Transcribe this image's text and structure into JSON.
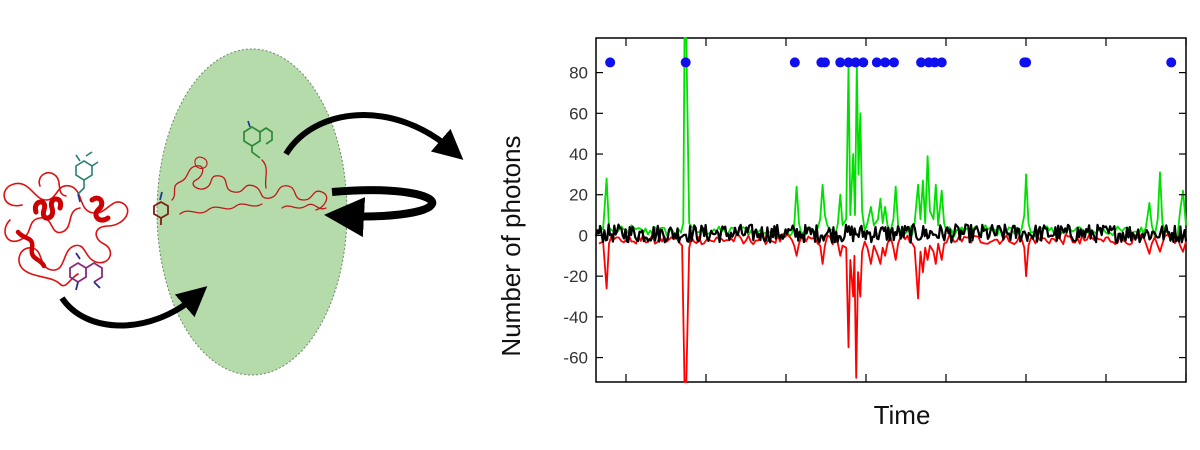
{
  "colors": {
    "focal_volume": "#b5dbaa",
    "donor": "#00e000",
    "acceptor": "#ff0000",
    "sum": "#000000",
    "burst_marker": "#1010ee",
    "protein": "#e01010",
    "arrow": "#000000"
  },
  "diagram": {
    "elements": [
      "folded-protein",
      "confocal-volume",
      "unfolded-protein",
      "donor-dye",
      "acceptor-dye",
      "diffusion-arrows"
    ]
  },
  "chart_data": {
    "type": "line",
    "xlabel": "Time",
    "ylabel": "Number of photons",
    "ylim": [
      -72,
      97
    ],
    "yticks": [
      -60,
      -40,
      -20,
      0,
      20,
      40,
      60,
      80
    ],
    "xlim": [
      0,
      1
    ],
    "grid": false,
    "burst_marker_y": 85,
    "burst_marker_x": [
      0.024,
      0.152,
      0.337,
      0.382,
      0.388,
      0.414,
      0.428,
      0.44,
      0.453,
      0.476,
      0.49,
      0.505,
      0.551,
      0.564,
      0.574,
      0.586,
      0.726,
      0.729,
      0.975
    ],
    "series": [
      {
        "id": "donor",
        "points": [
          [
            0.005,
            5
          ],
          [
            0.012,
            3
          ],
          [
            0.018,
            28
          ],
          [
            0.022,
            4
          ],
          [
            0.03,
            2
          ],
          [
            0.06,
            5
          ],
          [
            0.1,
            4
          ],
          [
            0.14,
            3
          ],
          [
            0.148,
            6
          ],
          [
            0.15,
            97
          ],
          [
            0.153,
            97
          ],
          [
            0.158,
            6
          ],
          [
            0.2,
            3
          ],
          [
            0.25,
            4
          ],
          [
            0.3,
            3
          ],
          [
            0.336,
            5
          ],
          [
            0.34,
            24
          ],
          [
            0.344,
            6
          ],
          [
            0.36,
            4
          ],
          [
            0.38,
            8
          ],
          [
            0.384,
            25
          ],
          [
            0.388,
            10
          ],
          [
            0.392,
            5
          ],
          [
            0.41,
            6
          ],
          [
            0.414,
            20
          ],
          [
            0.418,
            5
          ],
          [
            0.424,
            8
          ],
          [
            0.428,
            84
          ],
          [
            0.431,
            10
          ],
          [
            0.436,
            40
          ],
          [
            0.439,
            10
          ],
          [
            0.442,
            84
          ],
          [
            0.445,
            30
          ],
          [
            0.448,
            60
          ],
          [
            0.451,
            12
          ],
          [
            0.46,
            6
          ],
          [
            0.466,
            14
          ],
          [
            0.471,
            5
          ],
          [
            0.478,
            8
          ],
          [
            0.482,
            18
          ],
          [
            0.486,
            6
          ],
          [
            0.49,
            14
          ],
          [
            0.494,
            5
          ],
          [
            0.504,
            8
          ],
          [
            0.508,
            24
          ],
          [
            0.512,
            5
          ],
          [
            0.54,
            6
          ],
          [
            0.546,
            25
          ],
          [
            0.55,
            8
          ],
          [
            0.554,
            27
          ],
          [
            0.558,
            6
          ],
          [
            0.562,
            39
          ],
          [
            0.566,
            12
          ],
          [
            0.572,
            8
          ],
          [
            0.576,
            25
          ],
          [
            0.58,
            5
          ],
          [
            0.586,
            22
          ],
          [
            0.59,
            6
          ],
          [
            0.62,
            4
          ],
          [
            0.66,
            5
          ],
          [
            0.7,
            4
          ],
          [
            0.726,
            10
          ],
          [
            0.729,
            30
          ],
          [
            0.733,
            6
          ],
          [
            0.78,
            3
          ],
          [
            0.82,
            4
          ],
          [
            0.86,
            3
          ],
          [
            0.9,
            4
          ],
          [
            0.932,
            4
          ],
          [
            0.938,
            16
          ],
          [
            0.942,
            5
          ],
          [
            0.952,
            8
          ],
          [
            0.956,
            31
          ],
          [
            0.96,
            6
          ],
          [
            0.99,
            12
          ],
          [
            0.995,
            22
          ],
          [
            1.0,
            5
          ]
        ]
      },
      {
        "id": "acceptor",
        "points": [
          [
            0.005,
            -4
          ],
          [
            0.012,
            -3
          ],
          [
            0.018,
            -26
          ],
          [
            0.022,
            -4
          ],
          [
            0.03,
            -2
          ],
          [
            0.06,
            -3
          ],
          [
            0.1,
            -4
          ],
          [
            0.14,
            -3
          ],
          [
            0.146,
            -5
          ],
          [
            0.15,
            -72
          ],
          [
            0.153,
            -72
          ],
          [
            0.158,
            -6
          ],
          [
            0.2,
            -3
          ],
          [
            0.25,
            -4
          ],
          [
            0.3,
            -3
          ],
          [
            0.336,
            -5
          ],
          [
            0.34,
            -10
          ],
          [
            0.344,
            -4
          ],
          [
            0.38,
            -5
          ],
          [
            0.384,
            -14
          ],
          [
            0.388,
            -5
          ],
          [
            0.41,
            -4
          ],
          [
            0.414,
            -10
          ],
          [
            0.418,
            -5
          ],
          [
            0.424,
            -6
          ],
          [
            0.428,
            -55
          ],
          [
            0.431,
            -12
          ],
          [
            0.436,
            -30
          ],
          [
            0.438,
            -10
          ],
          [
            0.441,
            -70
          ],
          [
            0.444,
            -18
          ],
          [
            0.448,
            -30
          ],
          [
            0.451,
            -8
          ],
          [
            0.46,
            -6
          ],
          [
            0.466,
            -14
          ],
          [
            0.471,
            -5
          ],
          [
            0.478,
            -10
          ],
          [
            0.482,
            -14
          ],
          [
            0.486,
            -6
          ],
          [
            0.49,
            -10
          ],
          [
            0.494,
            -4
          ],
          [
            0.504,
            -6
          ],
          [
            0.508,
            -12
          ],
          [
            0.512,
            -4
          ],
          [
            0.54,
            -6
          ],
          [
            0.546,
            -31
          ],
          [
            0.55,
            -8
          ],
          [
            0.554,
            -18
          ],
          [
            0.558,
            -6
          ],
          [
            0.562,
            -12
          ],
          [
            0.566,
            -5
          ],
          [
            0.572,
            -8
          ],
          [
            0.576,
            -14
          ],
          [
            0.58,
            -4
          ],
          [
            0.586,
            -12
          ],
          [
            0.59,
            -4
          ],
          [
            0.62,
            -3
          ],
          [
            0.66,
            -4
          ],
          [
            0.7,
            -3
          ],
          [
            0.726,
            -6
          ],
          [
            0.729,
            -20
          ],
          [
            0.733,
            -5
          ],
          [
            0.78,
            -3
          ],
          [
            0.82,
            -4
          ],
          [
            0.86,
            -3
          ],
          [
            0.9,
            -4
          ],
          [
            0.932,
            -4
          ],
          [
            0.938,
            -9
          ],
          [
            0.942,
            -4
          ],
          [
            0.952,
            -5
          ],
          [
            0.956,
            -8
          ],
          [
            0.96,
            -4
          ],
          [
            0.99,
            -5
          ],
          [
            0.995,
            -8
          ],
          [
            1.0,
            -3
          ]
        ]
      },
      {
        "id": "sum",
        "noise_amplitude": 4.5,
        "baseline": 1
      }
    ]
  }
}
